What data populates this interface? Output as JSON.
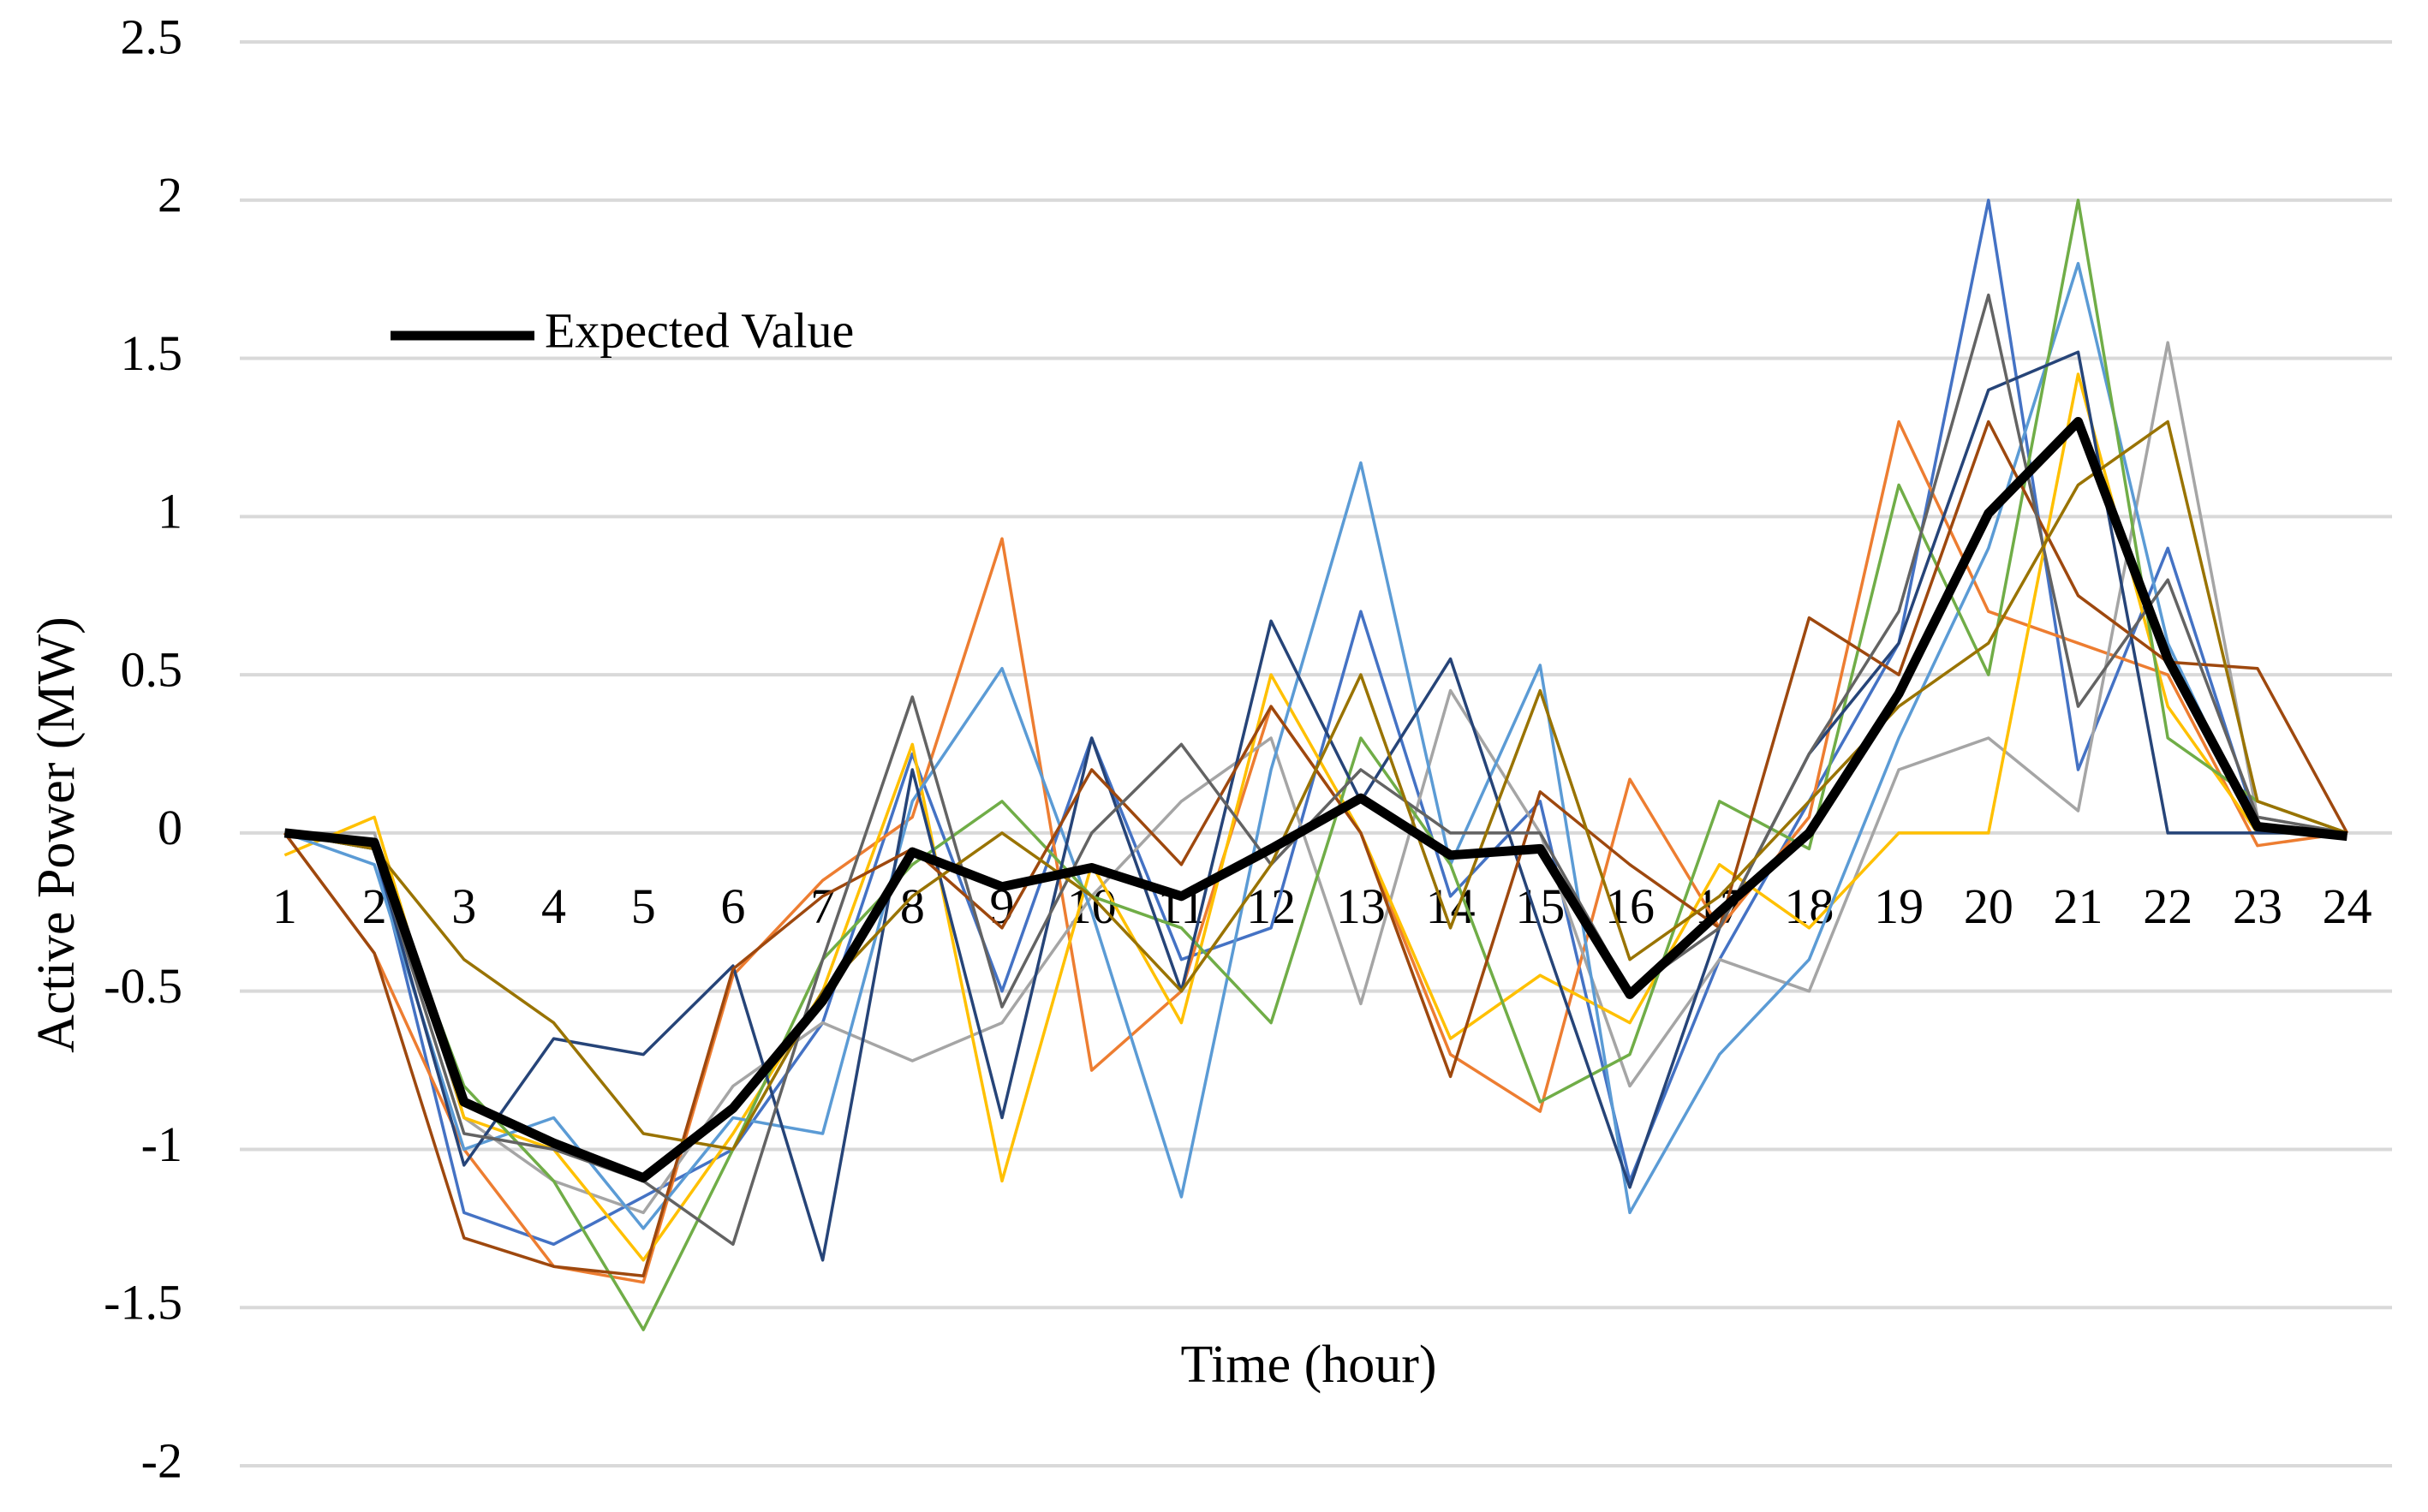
{
  "chart_data": {
    "type": "line",
    "x_label": "Time (hour)",
    "y_label": "Active Power (MW)",
    "categories": [
      "1",
      "2",
      "3",
      "4",
      "5",
      "6",
      "7",
      "8",
      "9",
      "10",
      "11",
      "12",
      "13",
      "14",
      "15",
      "16",
      "17",
      "18",
      "19",
      "20",
      "21",
      "22",
      "23",
      "24"
    ],
    "ylim": [
      -2,
      2.5
    ],
    "yticks": [
      -2,
      -1.5,
      -1,
      -0.5,
      0,
      0.5,
      1,
      1.5,
      2,
      2.5
    ],
    "grid": true,
    "legend": "upper-left",
    "series": [
      {
        "color": "#4472c4",
        "values": [
          0,
          -0.05,
          -1.2,
          -1.3,
          -1.15,
          -1.0,
          -0.6,
          0.25,
          -0.5,
          0.3,
          -0.4,
          -0.3,
          0.7,
          -0.2,
          0.1,
          -1.1,
          -0.4,
          0.1,
          0.6,
          2.0,
          0.2,
          0.9,
          0.02,
          0
        ]
      },
      {
        "color": "#ed7d31",
        "values": [
          0,
          -0.38,
          -1.0,
          -1.37,
          -1.42,
          -0.45,
          -0.15,
          0.05,
          0.93,
          -0.75,
          -0.5,
          0.4,
          0.0,
          -0.7,
          -0.88,
          0.17,
          -0.3,
          0.05,
          1.3,
          0.7,
          0.6,
          0.5,
          -0.04,
          0
        ]
      },
      {
        "color": "#a5a5a5",
        "values": [
          0,
          0,
          -0.9,
          -1.1,
          -1.2,
          -0.8,
          -0.6,
          -0.72,
          -0.6,
          -0.2,
          0.1,
          0.3,
          -0.54,
          0.45,
          0.0,
          -0.8,
          -0.4,
          -0.5,
          0.2,
          0.3,
          0.07,
          1.55,
          0.05,
          0
        ]
      },
      {
        "color": "#ffc000",
        "values": [
          -0.07,
          0.05,
          -0.9,
          -1.0,
          -1.35,
          -0.95,
          -0.5,
          0.28,
          -1.1,
          -0.1,
          -0.6,
          0.5,
          0.0,
          -0.65,
          -0.45,
          -0.6,
          -0.1,
          -0.3,
          0.0,
          0.0,
          1.45,
          0.4,
          0.0,
          0
        ]
      },
      {
        "color": "#5b9bd5",
        "values": [
          0,
          -0.1,
          -1.0,
          -0.9,
          -1.25,
          -0.9,
          -0.95,
          0.1,
          0.52,
          -0.25,
          -1.15,
          0.2,
          1.17,
          -0.1,
          0.53,
          -1.2,
          -0.7,
          -0.4,
          0.3,
          0.9,
          1.8,
          0.6,
          0.0,
          0
        ]
      },
      {
        "color": "#70ad47",
        "values": [
          0,
          -0.05,
          -0.8,
          -1.1,
          -1.57,
          -1.0,
          -0.4,
          -0.1,
          0.1,
          -0.2,
          -0.3,
          -0.6,
          0.3,
          -0.1,
          -0.85,
          -0.7,
          0.1,
          -0.05,
          1.1,
          0.5,
          2.0,
          0.3,
          0.1,
          0
        ]
      },
      {
        "color": "#264478",
        "values": [
          0,
          -0.05,
          -1.05,
          -0.65,
          -0.7,
          -0.42,
          -1.35,
          0.2,
          -0.9,
          0.3,
          -0.5,
          0.67,
          0.1,
          0.55,
          -0.3,
          -1.12,
          -0.3,
          0.25,
          0.6,
          1.4,
          1.52,
          0.0,
          0.0,
          0
        ]
      },
      {
        "color": "#9e480e",
        "values": [
          0,
          -0.38,
          -1.28,
          -1.37,
          -1.4,
          -0.43,
          -0.2,
          -0.05,
          -0.3,
          0.2,
          -0.1,
          0.4,
          0.0,
          -0.77,
          0.13,
          -0.1,
          -0.3,
          0.68,
          0.5,
          1.3,
          0.75,
          0.54,
          0.52,
          0
        ]
      },
      {
        "color": "#636363",
        "values": [
          0,
          -0.05,
          -0.95,
          -1.0,
          -1.1,
          -1.3,
          -0.4,
          0.43,
          -0.55,
          0.0,
          0.28,
          -0.1,
          0.2,
          0.0,
          0.0,
          -0.5,
          -0.3,
          0.25,
          0.7,
          1.7,
          0.4,
          0.8,
          0.05,
          0
        ]
      },
      {
        "color": "#997300",
        "values": [
          0,
          -0.05,
          -0.4,
          -0.6,
          -0.95,
          -1.0,
          -0.5,
          -0.2,
          0.0,
          -0.2,
          -0.5,
          -0.1,
          0.5,
          -0.3,
          0.45,
          -0.4,
          -0.2,
          0.1,
          0.4,
          0.6,
          1.1,
          1.3,
          0.1,
          0
        ]
      },
      {
        "name": "Expected Value",
        "color": "#000000",
        "values": [
          0,
          -0.03,
          -0.85,
          -0.98,
          -1.09,
          -0.87,
          -0.53,
          -0.06,
          -0.17,
          -0.11,
          -0.2,
          -0.05,
          0.11,
          -0.07,
          -0.05,
          -0.51,
          -0.25,
          0,
          0.44,
          1.01,
          1.3,
          0.55,
          0.02,
          -0.01
        ]
      }
    ]
  }
}
